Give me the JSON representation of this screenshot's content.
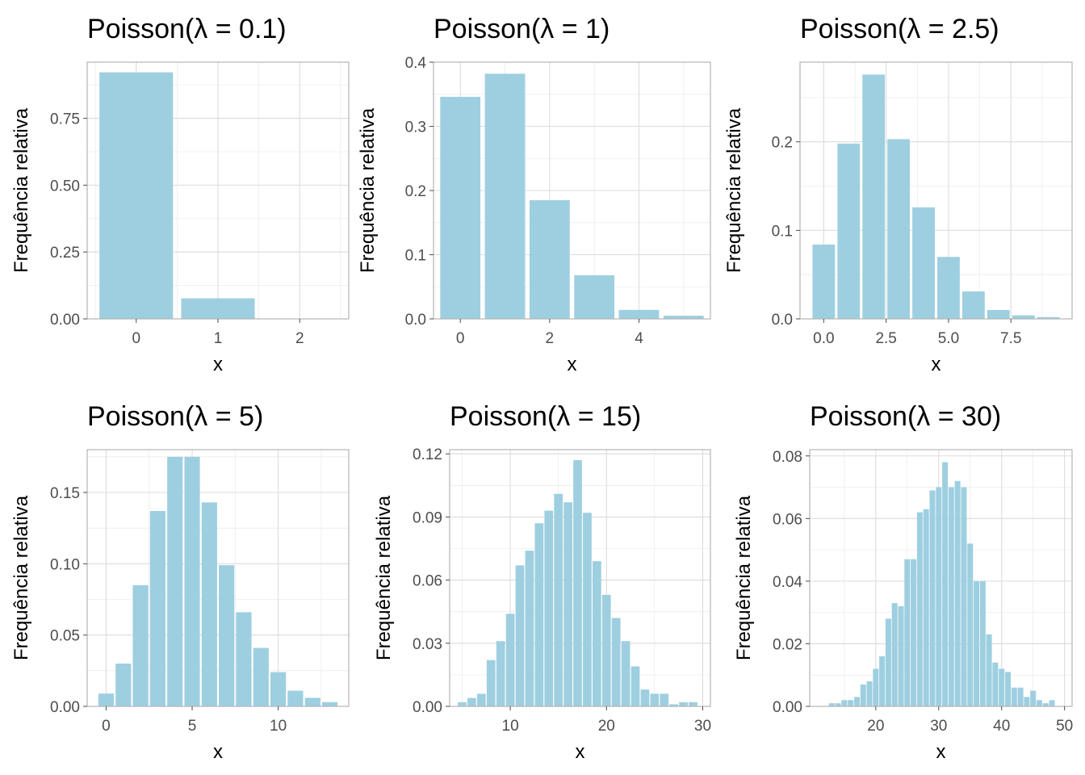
{
  "chart_data": [
    {
      "type": "bar",
      "title": "Poisson(λ = 0.1)",
      "xlabel": "x",
      "ylabel": "Frequência relativa",
      "x": [
        0,
        1,
        2
      ],
      "values": [
        0.922,
        0.077,
        0.001
      ],
      "xlim": [
        -0.6,
        2.6
      ],
      "ylim": [
        0,
        0.96
      ],
      "xticks": [
        0,
        1,
        2
      ],
      "xticklabels": [
        "0",
        "1",
        "2"
      ],
      "yticks": [
        0,
        0.25,
        0.5,
        0.75
      ],
      "yticklabels": [
        "0.00",
        "0.25",
        "0.50",
        "0.75"
      ],
      "grid": true,
      "bar_color": "#9ecfe0"
    },
    {
      "type": "bar",
      "title": "Poisson(λ = 1)",
      "xlabel": "x",
      "ylabel": "Frequência relativa",
      "x": [
        0,
        1,
        2,
        3,
        4,
        5
      ],
      "values": [
        0.346,
        0.382,
        0.185,
        0.068,
        0.014,
        0.005
      ],
      "xlim": [
        -0.6,
        5.6
      ],
      "ylim": [
        0,
        0.4
      ],
      "xticks": [
        0,
        2,
        4
      ],
      "xticklabels": [
        "0",
        "2",
        "4"
      ],
      "yticks": [
        0,
        0.1,
        0.2,
        0.3,
        0.4
      ],
      "yticklabels": [
        "0.0",
        "0.1",
        "0.2",
        "0.3",
        "0.4"
      ],
      "grid": true,
      "bar_color": "#9ecfe0"
    },
    {
      "type": "bar",
      "title": "Poisson(λ = 2.5)",
      "xlabel": "x",
      "ylabel": "Frequência relativa",
      "x": [
        0,
        1,
        2,
        3,
        4,
        5,
        6,
        7,
        8,
        9
      ],
      "values": [
        0.084,
        0.198,
        0.276,
        0.203,
        0.126,
        0.07,
        0.031,
        0.01,
        0.004,
        0.002
      ],
      "xlim": [
        -0.95,
        9.95
      ],
      "ylim": [
        0,
        0.29
      ],
      "xticks": [
        0,
        2.5,
        5,
        7.5
      ],
      "xticklabels": [
        "0.0",
        "2.5",
        "5.0",
        "7.5"
      ],
      "yticks": [
        0,
        0.1,
        0.2
      ],
      "yticklabels": [
        "0.0",
        "0.1",
        "0.2"
      ],
      "grid": true,
      "bar_color": "#9ecfe0"
    },
    {
      "type": "bar",
      "title": "Poisson(λ = 5)",
      "xlabel": "x",
      "ylabel": "Frequência relativa",
      "x": [
        0,
        1,
        2,
        3,
        4,
        5,
        6,
        7,
        8,
        9,
        10,
        11,
        12,
        13
      ],
      "values": [
        0.009,
        0.03,
        0.085,
        0.137,
        0.175,
        0.175,
        0.143,
        0.099,
        0.066,
        0.041,
        0.024,
        0.011,
        0.006,
        0.003
      ],
      "xlim": [
        -1.1,
        14.1
      ],
      "ylim": [
        0,
        0.18
      ],
      "xticks": [
        0,
        5,
        10
      ],
      "xticklabels": [
        "0",
        "5",
        "10"
      ],
      "yticks": [
        0,
        0.05,
        0.1,
        0.15
      ],
      "yticklabels": [
        "0.00",
        "0.05",
        "0.10",
        "0.15"
      ],
      "grid": true,
      "bar_color": "#9ecfe0"
    },
    {
      "type": "bar",
      "title": "Poisson(λ = 15)",
      "xlabel": "x",
      "ylabel": "Frequência relativa",
      "x": [
        5,
        6,
        7,
        8,
        9,
        10,
        11,
        12,
        13,
        14,
        15,
        16,
        17,
        18,
        19,
        20,
        21,
        22,
        23,
        24,
        25,
        26,
        27,
        28,
        29
      ],
      "values": [
        0.002,
        0.004,
        0.006,
        0.022,
        0.031,
        0.044,
        0.067,
        0.074,
        0.087,
        0.093,
        0.101,
        0.097,
        0.117,
        0.092,
        0.069,
        0.053,
        0.042,
        0.031,
        0.019,
        0.008,
        0.006,
        0.006,
        0.001,
        0.002,
        0.002
      ],
      "xlim": [
        3.7,
        30.8
      ],
      "ylim": [
        0,
        0.122
      ],
      "xticks": [
        10,
        20,
        30
      ],
      "xticklabels": [
        "10",
        "20",
        "30"
      ],
      "yticks": [
        0,
        0.03,
        0.06,
        0.09,
        0.12
      ],
      "yticklabels": [
        "0.00",
        "0.03",
        "0.06",
        "0.09",
        "0.12"
      ],
      "grid": true,
      "bar_color": "#9ecfe0"
    },
    {
      "type": "bar",
      "title": "Poisson(λ = 30)",
      "xlabel": "x",
      "ylabel": "Frequência relativa",
      "x": [
        13,
        14,
        15,
        16,
        17,
        18,
        19,
        20,
        21,
        22,
        23,
        24,
        25,
        26,
        27,
        28,
        29,
        30,
        31,
        32,
        33,
        34,
        35,
        36,
        37,
        38,
        39,
        40,
        41,
        42,
        43,
        44,
        45,
        46,
        47,
        48
      ],
      "values": [
        0.001,
        0.001,
        0.002,
        0.002,
        0.003,
        0.007,
        0.008,
        0.012,
        0.016,
        0.028,
        0.033,
        0.032,
        0.047,
        0.047,
        0.062,
        0.063,
        0.069,
        0.07,
        0.078,
        0.07,
        0.072,
        0.07,
        0.052,
        0.04,
        0.04,
        0.023,
        0.014,
        0.012,
        0.011,
        0.006,
        0.006,
        0.003,
        0.005,
        0.002,
        0.001,
        0.002
      ],
      "xlim": [
        9.5,
        51.2
      ],
      "ylim": [
        0,
        0.082
      ],
      "xticks": [
        20,
        30,
        40,
        50
      ],
      "xticklabels": [
        "20",
        "30",
        "40",
        "50"
      ],
      "yticks": [
        0,
        0.02,
        0.04,
        0.06,
        0.08
      ],
      "yticklabels": [
        "0.00",
        "0.02",
        "0.04",
        "0.06",
        "0.08"
      ],
      "grid": true,
      "bar_color": "#9ecfe0"
    }
  ]
}
